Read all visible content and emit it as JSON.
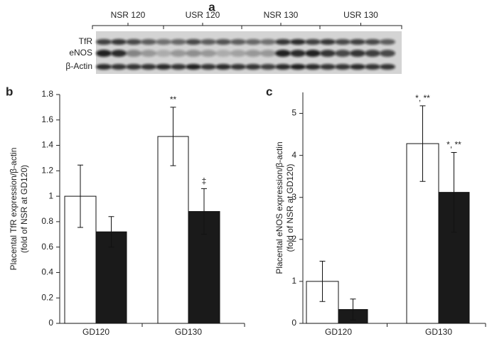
{
  "blot": {
    "panel": "a",
    "groups": [
      "NSR 120",
      "USR 120",
      "NSR 130",
      "USR 130"
    ],
    "rows": [
      "TfR",
      "eNOS",
      "β-Actin"
    ]
  },
  "chart_data": [
    {
      "type": "bar",
      "panel": "b",
      "y_label": [
        "Placental TfR expression/β-actin",
        "(fold of NSR at GD120)"
      ],
      "categories": [
        "GD120",
        "GD130"
      ],
      "series": [
        {
          "color": "#ffffff",
          "values": [
            1.0,
            1.47
          ],
          "errors": [
            0.245,
            0.23
          ],
          "annotations": [
            null,
            "**"
          ]
        },
        {
          "color": "#1a1a1a",
          "values": [
            0.72,
            0.88
          ],
          "errors": [
            0.12,
            0.18
          ],
          "annotations": [
            null,
            "‡"
          ]
        }
      ],
      "ylim": [
        0,
        1.8
      ],
      "yticks": [
        0,
        {
          "value": 0.2,
          "label": "0.2"
        },
        {
          "value": 0.4,
          "label": "0.4"
        },
        {
          "value": 0.6,
          "label": "0.6"
        },
        {
          "value": 0.8,
          "label": "0.8"
        },
        1,
        {
          "value": 1.2,
          "label": "1.2"
        },
        {
          "value": 1.4,
          "label": "1.4"
        },
        {
          "value": 1.6,
          "label": "1.6"
        },
        {
          "value": 1.8,
          "label": "1.8"
        }
      ]
    },
    {
      "type": "bar",
      "panel": "c",
      "y_label": [
        "Placental eNOS expression/β-actin",
        "(fold of NSR at GD120)"
      ],
      "categories": [
        "GD120",
        "GD130"
      ],
      "series": [
        {
          "color": "#ffffff",
          "values": [
            1.0,
            4.28
          ],
          "errors": [
            0.48,
            0.9
          ],
          "annotations": [
            null,
            "*, **"
          ]
        },
        {
          "color": "#1a1a1a",
          "values": [
            0.33,
            3.12
          ],
          "errors": [
            0.25,
            0.95
          ],
          "annotations": [
            null,
            "*, **"
          ]
        }
      ],
      "ylim": [
        0,
        5.5
      ],
      "yticks": [
        0,
        1,
        2,
        3,
        4,
        5
      ]
    }
  ]
}
